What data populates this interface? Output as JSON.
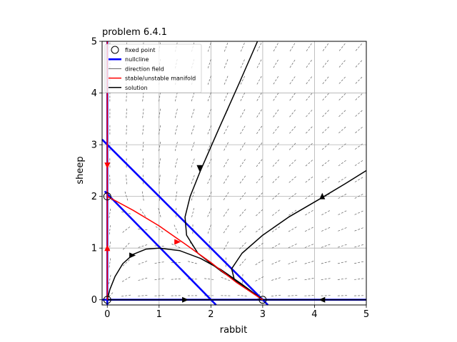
{
  "chart_data": {
    "type": "line",
    "title": "problem 6.4.1",
    "xlabel": "rabbit",
    "ylabel": "sheep",
    "xlim": [
      -0.1,
      5
    ],
    "ylim": [
      -0.1,
      5
    ],
    "x_ticks": [
      "0",
      "1",
      "2",
      "3",
      "4",
      "5"
    ],
    "y_ticks": [
      "0",
      "1",
      "2",
      "3",
      "4",
      "5"
    ],
    "grid": true,
    "legend_position": "top-left",
    "colors": {
      "nullcline": "#0000ff",
      "manifold": "#ff0000",
      "solution": "#000000",
      "direction_field": "#606060"
    },
    "legend": [
      {
        "key": "fixed_point",
        "label": "fixed point"
      },
      {
        "key": "nullcline",
        "label": "nullcline"
      },
      {
        "key": "direction_field",
        "label": "direction field"
      },
      {
        "key": "manifold",
        "label": "stable/unstable manifold"
      },
      {
        "key": "solution",
        "label": "solution"
      }
    ],
    "fixed_points": [
      [
        0,
        0
      ],
      [
        0,
        2
      ],
      [
        3,
        0
      ]
    ],
    "nullclines": [
      {
        "points": [
          [
            0,
            -0.1
          ],
          [
            0,
            5
          ]
        ]
      },
      {
        "points": [
          [
            -0.1,
            0
          ],
          [
            5,
            0
          ]
        ]
      },
      {
        "points": [
          [
            -0.1,
            3.1
          ],
          [
            3.1,
            -0.1
          ]
        ]
      },
      {
        "points": [
          [
            -0.05,
            2.1
          ],
          [
            2.1,
            -0.1
          ]
        ]
      }
    ],
    "manifolds": [
      {
        "points": [
          [
            0,
            5
          ],
          [
            0,
            2
          ]
        ],
        "arrows": [
          [
            0,
            2.6,
            "down"
          ]
        ]
      },
      {
        "points": [
          [
            0,
            0
          ],
          [
            0,
            2
          ]
        ],
        "arrows": [
          [
            0,
            1.0,
            "up"
          ]
        ]
      },
      {
        "points": [
          [
            0,
            2
          ],
          [
            0.5,
            1.73
          ],
          [
            1.0,
            1.43
          ],
          [
            1.5,
            1.08
          ],
          [
            2.0,
            0.72
          ],
          [
            2.5,
            0.33
          ],
          [
            3,
            0
          ]
        ],
        "arrows": [
          [
            1.35,
            1.12,
            "right"
          ]
        ]
      }
    ],
    "solutions": [
      {
        "points": [
          [
            0,
            0
          ],
          [
            0.05,
            0.2
          ],
          [
            0.15,
            0.45
          ],
          [
            0.3,
            0.7
          ],
          [
            0.5,
            0.88
          ],
          [
            0.75,
            0.98
          ],
          [
            1.0,
            1.0
          ],
          [
            1.4,
            0.95
          ],
          [
            1.8,
            0.8
          ],
          [
            2.2,
            0.58
          ],
          [
            2.6,
            0.3
          ],
          [
            3,
            0
          ]
        ],
        "arrows": [
          [
            0.48,
            0.86,
            "right"
          ]
        ]
      },
      {
        "points": [
          [
            2.9,
            5.0
          ],
          [
            2.55,
            4.2
          ],
          [
            2.15,
            3.3
          ],
          [
            1.8,
            2.5
          ],
          [
            1.6,
            2.0
          ],
          [
            1.5,
            1.6
          ],
          [
            1.53,
            1.25
          ],
          [
            1.75,
            0.9
          ],
          [
            2.2,
            0.55
          ],
          [
            2.65,
            0.25
          ],
          [
            3,
            0
          ]
        ],
        "arrows": [
          [
            1.78,
            2.55,
            "down"
          ]
        ]
      },
      {
        "points": [
          [
            5.0,
            2.5
          ],
          [
            4.6,
            2.25
          ],
          [
            4.1,
            1.95
          ],
          [
            3.5,
            1.6
          ],
          [
            3.0,
            1.25
          ],
          [
            2.6,
            0.9
          ],
          [
            2.4,
            0.6
          ],
          [
            2.45,
            0.4
          ],
          [
            2.7,
            0.2
          ],
          [
            3,
            0
          ]
        ],
        "arrows": [
          [
            4.15,
            2.0,
            "up"
          ]
        ]
      },
      {
        "points": [
          [
            0,
            0
          ],
          [
            3,
            0
          ]
        ],
        "arrows": [
          [
            1.5,
            0,
            "right"
          ]
        ]
      },
      {
        "points": [
          [
            5,
            0
          ],
          [
            3,
            0
          ]
        ],
        "arrows": [
          [
            4.15,
            0,
            "left"
          ]
        ]
      }
    ]
  }
}
